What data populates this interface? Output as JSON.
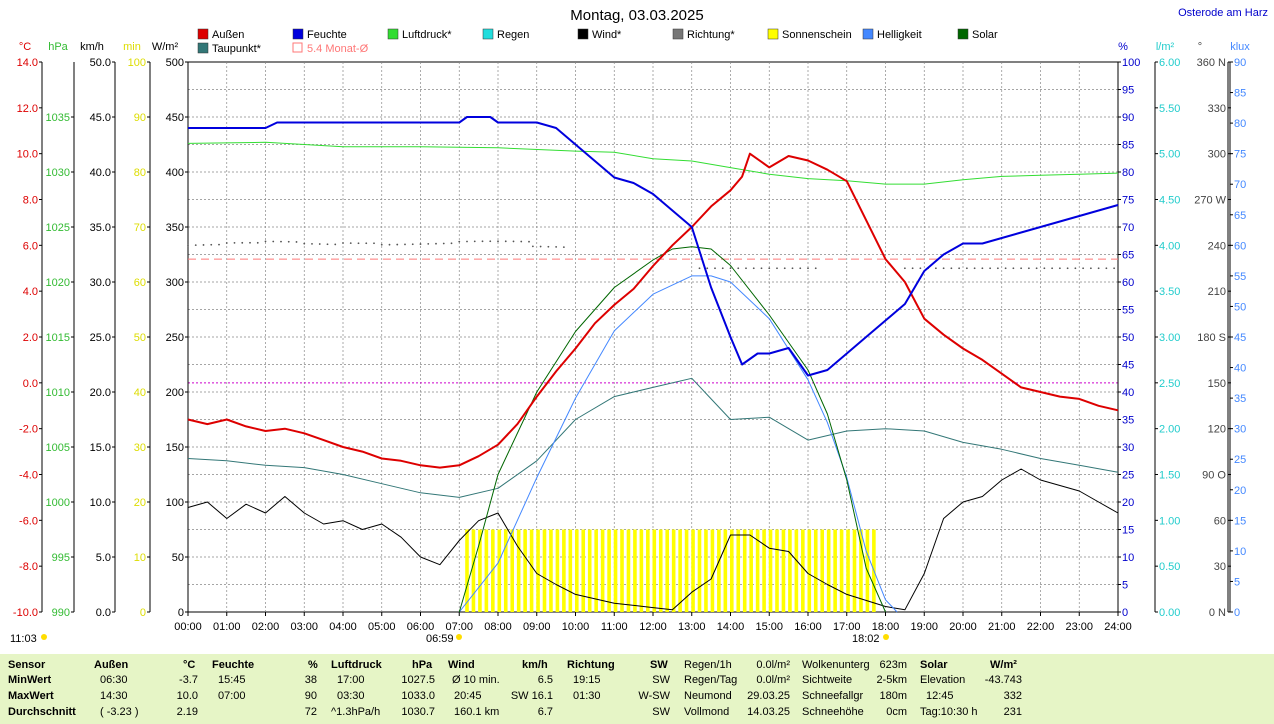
{
  "title": "Montag, 03.03.2025",
  "location": "Osterode am Harz",
  "legend": [
    {
      "label": "Außen",
      "color": "#dd0000"
    },
    {
      "label": "Feuchte",
      "color": "#0000dd"
    },
    {
      "label": "Luftdruck*",
      "color": "#33dd33"
    },
    {
      "label": "Regen",
      "color": "#22dddd"
    },
    {
      "label": "Wind*",
      "color": "#000000"
    },
    {
      "label": "Richtung*",
      "color": "#777777"
    },
    {
      "label": "Sonnenschein",
      "color": "#ffff00"
    },
    {
      "label": "Helligkeit",
      "color": "#4488ff"
    },
    {
      "label": "Solar",
      "color": "#006600"
    },
    {
      "label": "Taupunkt*",
      "color": "#337777"
    },
    {
      "label": "5.4 Monat-Ø",
      "color": "#ff7777"
    }
  ],
  "axes": {
    "temp": {
      "unit": "°C",
      "color": "#dd0000",
      "ticks": [
        "14.0",
        "12.0",
        "10.0",
        "8.0",
        "6.0",
        "4.0",
        "2.0",
        "0.0",
        "-2.0",
        "-4.0",
        "-6.0",
        "-8.0",
        "-10.0"
      ]
    },
    "press": {
      "unit": "hPa",
      "color": "#33bb33",
      "ticks": [
        "1035",
        "1030",
        "1025",
        "1020",
        "1015",
        "1010",
        "1005",
        "1000",
        "995",
        "990"
      ]
    },
    "wind": {
      "unit": "km/h",
      "color": "#000000",
      "ticks": [
        "50.0",
        "45.0",
        "40.0",
        "35.0",
        "30.0",
        "25.0",
        "20.0",
        "15.0",
        "10.0",
        "5.0",
        "0.0"
      ]
    },
    "sun": {
      "unit": "min",
      "color": "#dddd00",
      "ticks": [
        "100",
        "90",
        "80",
        "70",
        "60",
        "50",
        "40",
        "30",
        "20",
        "10",
        "0"
      ]
    },
    "solar": {
      "unit": "W/m²",
      "color": "#006600",
      "ticks": [
        "500",
        "450",
        "400",
        "350",
        "300",
        "250",
        "200",
        "150",
        "100",
        "50",
        "0"
      ]
    },
    "hum": {
      "unit": "%",
      "color": "#0000cc",
      "ticks": [
        "100",
        "95",
        "90",
        "85",
        "80",
        "75",
        "70",
        "65",
        "60",
        "55",
        "50",
        "45",
        "40",
        "35",
        "30",
        "25",
        "20",
        "15",
        "10",
        "5",
        "0"
      ]
    },
    "rain": {
      "unit": "l/m²",
      "color": "#22cccc",
      "ticks": [
        "6.00",
        "5.50",
        "5.00",
        "4.50",
        "4.00",
        "3.50",
        "3.00",
        "2.50",
        "2.00",
        "1.50",
        "1.00",
        "0.50",
        "0.00"
      ]
    },
    "dir": {
      "unit": "°",
      "color": "#444444",
      "ticks": [
        "360 N",
        "330",
        "300",
        "270 W",
        "240",
        "210",
        "180 S",
        "150",
        "120",
        "90 O",
        "60",
        "30",
        "0 N"
      ]
    },
    "lux": {
      "unit": "klux",
      "color": "#4488ff",
      "ticks": [
        "90",
        "85",
        "80",
        "75",
        "70",
        "65",
        "60",
        "55",
        "50",
        "45",
        "40",
        "35",
        "30",
        "25",
        "20",
        "15",
        "10",
        "5",
        "0"
      ]
    },
    "time": [
      "00:00",
      "01:00",
      "02:00",
      "03:00",
      "04:00",
      "05:00",
      "06:00",
      "07:00",
      "08:00",
      "09:00",
      "10:00",
      "11:00",
      "12:00",
      "13:00",
      "14:00",
      "15:00",
      "16:00",
      "17:00",
      "18:00",
      "19:00",
      "20:00",
      "21:00",
      "22:00",
      "23:00",
      "24:00"
    ]
  },
  "markers": {
    "moonrise": "11:03",
    "sunrise": "06:59",
    "sunset": "18:02"
  },
  "chart_data": {
    "type": "line",
    "title": "Montag, 03.03.2025",
    "x_unit": "hour",
    "series": [
      {
        "name": "Außen",
        "unit": "°C",
        "color": "#dd0000",
        "points": [
          [
            0,
            -1.6
          ],
          [
            0.5,
            -1.8
          ],
          [
            1,
            -1.6
          ],
          [
            1.5,
            -1.9
          ],
          [
            2,
            -2.1
          ],
          [
            2.5,
            -2.0
          ],
          [
            3,
            -2.2
          ],
          [
            3.5,
            -2.5
          ],
          [
            4,
            -2.8
          ],
          [
            4.5,
            -3.0
          ],
          [
            5,
            -3.3
          ],
          [
            5.5,
            -3.4
          ],
          [
            6,
            -3.6
          ],
          [
            6.5,
            -3.7
          ],
          [
            7,
            -3.6
          ],
          [
            7.5,
            -3.2
          ],
          [
            8,
            -2.7
          ],
          [
            8.5,
            -1.8
          ],
          [
            9,
            -0.6
          ],
          [
            9.5,
            0.5
          ],
          [
            10,
            1.5
          ],
          [
            10.5,
            2.6
          ],
          [
            11,
            3.4
          ],
          [
            11.5,
            4.1
          ],
          [
            12,
            5.1
          ],
          [
            12.5,
            6.0
          ],
          [
            13,
            6.8
          ],
          [
            13.5,
            7.7
          ],
          [
            14,
            8.4
          ],
          [
            14.3,
            9.0
          ],
          [
            14.5,
            10.0
          ],
          [
            15,
            9.4
          ],
          [
            15.5,
            9.9
          ],
          [
            16,
            9.7
          ],
          [
            16.5,
            9.3
          ],
          [
            17,
            8.8
          ],
          [
            17.5,
            7.1
          ],
          [
            18,
            5.4
          ],
          [
            18.5,
            4.4
          ],
          [
            19,
            2.8
          ],
          [
            19.5,
            2.1
          ],
          [
            20,
            1.5
          ],
          [
            20.5,
            1.0
          ],
          [
            21,
            0.4
          ],
          [
            21.5,
            -0.2
          ],
          [
            22,
            -0.4
          ],
          [
            22.5,
            -0.6
          ],
          [
            23,
            -0.7
          ],
          [
            23.5,
            -1.0
          ],
          [
            24,
            -1.2
          ]
        ]
      },
      {
        "name": "Feuchte",
        "unit": "%",
        "color": "#0000dd",
        "points": [
          [
            0,
            88
          ],
          [
            2,
            88
          ],
          [
            2.3,
            89
          ],
          [
            7,
            89
          ],
          [
            7.2,
            90
          ],
          [
            7.8,
            90
          ],
          [
            8,
            89
          ],
          [
            9,
            89
          ],
          [
            9.5,
            88
          ],
          [
            10,
            85
          ],
          [
            10.5,
            82
          ],
          [
            11,
            79
          ],
          [
            11.5,
            78
          ],
          [
            12,
            76
          ],
          [
            12.5,
            73
          ],
          [
            13,
            70
          ],
          [
            13.5,
            59
          ],
          [
            14,
            50
          ],
          [
            14.3,
            45
          ],
          [
            14.7,
            47
          ],
          [
            15,
            47
          ],
          [
            15.5,
            48
          ],
          [
            16,
            43
          ],
          [
            16.5,
            44
          ],
          [
            17,
            47
          ],
          [
            17.5,
            50
          ],
          [
            18,
            53
          ],
          [
            18.5,
            56
          ],
          [
            19,
            62
          ],
          [
            19.5,
            65
          ],
          [
            20,
            67
          ],
          [
            20.5,
            67
          ],
          [
            21,
            68
          ],
          [
            21.5,
            69
          ],
          [
            22,
            70
          ],
          [
            22.5,
            71
          ],
          [
            23,
            72
          ],
          [
            23.5,
            73
          ],
          [
            24,
            74
          ]
        ]
      },
      {
        "name": "Luftdruck*",
        "unit": "hPa",
        "color": "#33dd33",
        "points": [
          [
            0,
            1032.6
          ],
          [
            2,
            1032.7
          ],
          [
            4,
            1032.3
          ],
          [
            6,
            1032.3
          ],
          [
            8,
            1032.2
          ],
          [
            10,
            1031.9
          ],
          [
            11,
            1031.8
          ],
          [
            12,
            1031.2
          ],
          [
            13,
            1031.0
          ],
          [
            14,
            1030.4
          ],
          [
            15,
            1029.8
          ],
          [
            16,
            1029.4
          ],
          [
            17,
            1029.2
          ],
          [
            18,
            1028.9
          ],
          [
            19,
            1028.9
          ],
          [
            20,
            1029.3
          ],
          [
            21,
            1029.6
          ],
          [
            22,
            1029.7
          ],
          [
            23,
            1029.8
          ],
          [
            24,
            1029.9
          ]
        ]
      },
      {
        "name": "Taupunkt*",
        "unit": "°C",
        "color": "#337777",
        "points": [
          [
            0,
            -3.3
          ],
          [
            1,
            -3.4
          ],
          [
            2,
            -3.6
          ],
          [
            3,
            -3.7
          ],
          [
            4,
            -4.0
          ],
          [
            5,
            -4.4
          ],
          [
            6,
            -4.8
          ],
          [
            7,
            -5.0
          ],
          [
            8,
            -4.6
          ],
          [
            9,
            -3.4
          ],
          [
            10,
            -1.6
          ],
          [
            11,
            -0.6
          ],
          [
            12,
            -0.2
          ],
          [
            13,
            0.2
          ],
          [
            13.5,
            -0.7
          ],
          [
            14,
            -1.6
          ],
          [
            15,
            -1.5
          ],
          [
            16,
            -2.5
          ],
          [
            17,
            -2.1
          ],
          [
            18,
            -2.0
          ],
          [
            19,
            -2.1
          ],
          [
            20,
            -2.6
          ],
          [
            21,
            -2.9
          ],
          [
            22,
            -3.3
          ],
          [
            23,
            -3.6
          ],
          [
            24,
            -3.9
          ]
        ]
      },
      {
        "name": "Wind*",
        "unit": "km/h",
        "color": "#000000",
        "points": [
          [
            0,
            9.5
          ],
          [
            0.5,
            10
          ],
          [
            1,
            8.5
          ],
          [
            1.5,
            9.8
          ],
          [
            2,
            9
          ],
          [
            2.5,
            10.5
          ],
          [
            3,
            9
          ],
          [
            3.5,
            8
          ],
          [
            4,
            8.3
          ],
          [
            4.5,
            7.5
          ],
          [
            5,
            8
          ],
          [
            5.5,
            6.8
          ],
          [
            6,
            5
          ],
          [
            6.5,
            4.3
          ],
          [
            7,
            6.5
          ],
          [
            7.5,
            8.3
          ],
          [
            8,
            9
          ],
          [
            8.5,
            6
          ],
          [
            9,
            3.5
          ],
          [
            9.5,
            2.5
          ],
          [
            10,
            1.6
          ],
          [
            11,
            0.8
          ],
          [
            12,
            0.4
          ],
          [
            12.5,
            0.2
          ],
          [
            13,
            1.8
          ],
          [
            13.5,
            3
          ],
          [
            14,
            7
          ],
          [
            14.5,
            7
          ],
          [
            15,
            5.8
          ],
          [
            15.5,
            5.5
          ],
          [
            16,
            3.5
          ],
          [
            16.5,
            2.5
          ],
          [
            17,
            1.6
          ],
          [
            18,
            0.5
          ],
          [
            18.5,
            0.2
          ],
          [
            19,
            3.5
          ],
          [
            19.5,
            8.5
          ],
          [
            20,
            10
          ],
          [
            20.5,
            10.5
          ],
          [
            21,
            12
          ],
          [
            21.5,
            13
          ],
          [
            22,
            12
          ],
          [
            22.5,
            11.5
          ],
          [
            23,
            11
          ],
          [
            23.5,
            10
          ],
          [
            24,
            9
          ]
        ]
      },
      {
        "name": "Helligkeit",
        "unit": "klux",
        "color": "#4488ff",
        "points": [
          [
            7,
            0
          ],
          [
            8,
            8
          ],
          [
            9,
            22
          ],
          [
            10,
            35
          ],
          [
            11,
            46
          ],
          [
            12,
            52
          ],
          [
            13,
            55
          ],
          [
            13.5,
            55
          ],
          [
            14,
            54
          ],
          [
            15,
            48
          ],
          [
            16,
            38
          ],
          [
            16.5,
            31
          ],
          [
            17,
            22
          ],
          [
            17.5,
            10
          ],
          [
            18,
            2
          ],
          [
            18.3,
            0
          ]
        ]
      },
      {
        "name": "Solar",
        "unit": "W/m²",
        "color": "#006600",
        "points": [
          [
            7,
            0
          ],
          [
            7.5,
            60
          ],
          [
            8,
            125
          ],
          [
            9,
            200
          ],
          [
            10,
            255
          ],
          [
            11,
            295
          ],
          [
            12,
            320
          ],
          [
            12.5,
            330
          ],
          [
            13,
            332
          ],
          [
            13.5,
            330
          ],
          [
            14,
            315
          ],
          [
            15,
            270
          ],
          [
            16,
            220
          ],
          [
            16.5,
            180
          ],
          [
            17,
            120
          ],
          [
            17.5,
            40
          ],
          [
            18,
            0
          ]
        ]
      },
      {
        "name": "Sonnenschein",
        "unit": "min",
        "color": "#ffff00",
        "points": [
          [
            7.2,
            15
          ],
          [
            17.7,
            15
          ]
        ]
      },
      {
        "name": "5.4 Monat-Ø",
        "unit": "°C",
        "color": "#ff7777",
        "points": [
          [
            0,
            5.4
          ],
          [
            24,
            5.4
          ]
        ]
      }
    ]
  },
  "stats": {
    "sensor": {
      "header": "Sensor",
      "rows": [
        "MinWert",
        "MaxWert",
        "Durchschnitt"
      ]
    },
    "aussen": {
      "header": "Außen",
      "unit": "°C",
      "times": [
        "06:30",
        "14:30",
        "( -3.23 )"
      ],
      "values": [
        "-3.7",
        "10.0",
        "2.19"
      ]
    },
    "feuchte": {
      "header": "Feuchte",
      "unit": "%",
      "times": [
        "15:45",
        "07:00",
        ""
      ],
      "values": [
        "38",
        "90",
        "72"
      ]
    },
    "luftdruck": {
      "header": "Luftdruck",
      "unit": "hPa",
      "times": [
        "17:00",
        "03:30",
        "^1.3hPa/h"
      ],
      "values": [
        "1027.5",
        "1033.0",
        "1030.7"
      ]
    },
    "wind": {
      "header": "Wind",
      "unit": "km/h",
      "times": [
        "Ø 10 min.",
        "20:45",
        "160.1 km"
      ],
      "values": [
        "6.5",
        "SW 16.1",
        "6.7"
      ]
    },
    "richtung": {
      "header": "Richtung",
      "unit": "SW",
      "times": [
        "19:15",
        "01:30",
        ""
      ],
      "values": [
        "SW",
        "W-SW",
        "SW"
      ]
    },
    "regen": {
      "labels": [
        "Regen/1h",
        "Regen/Tag",
        "Neumond",
        "Vollmond"
      ],
      "values": [
        "0.0l/m²",
        "0.0l/m²",
        "29.03.25",
        "14.03.25"
      ]
    },
    "wolken": {
      "labels": [
        "Wolkenunterg",
        "Sichtweite",
        "Schneefallgr",
        "Schneehöhe"
      ],
      "values": [
        "623m",
        "2-5km",
        "180m",
        "0cm"
      ]
    },
    "solar": {
      "header": "Solar",
      "unit": "W/m²",
      "labels": [
        "Elevation",
        "12:45",
        "Tag:10:30 h"
      ],
      "values": [
        "-43.743",
        "332",
        "231"
      ]
    }
  }
}
